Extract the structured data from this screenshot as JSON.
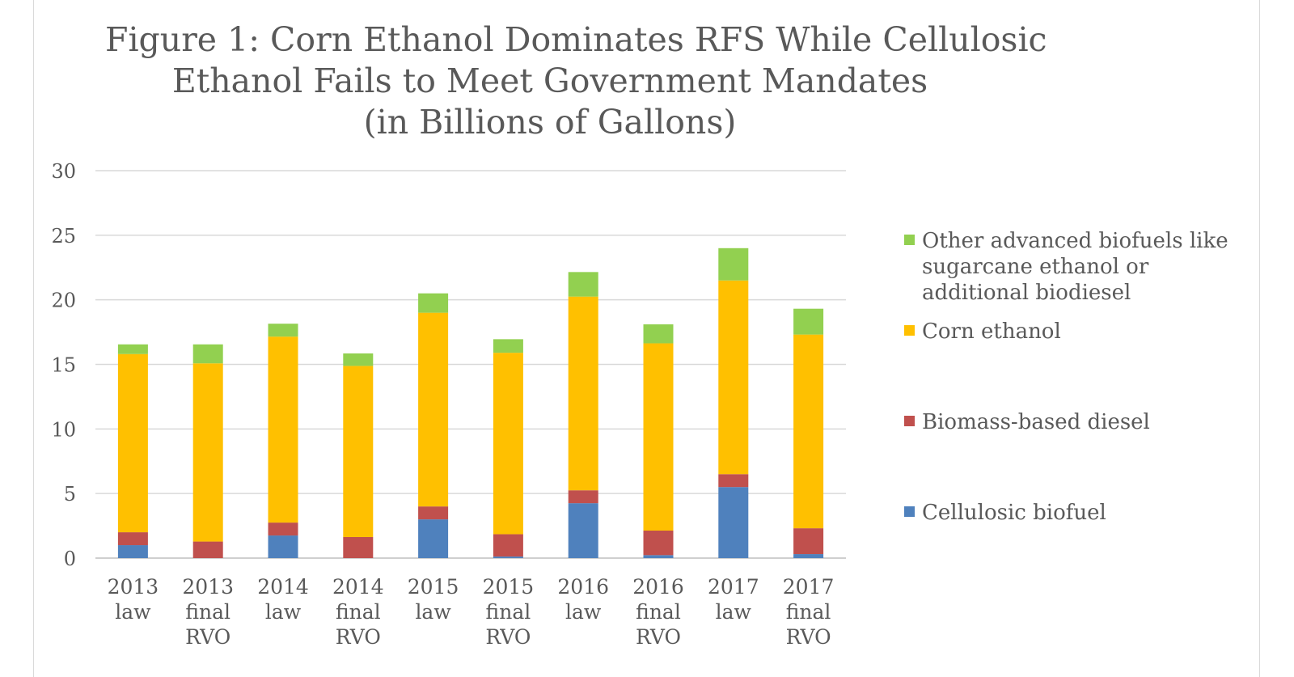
{
  "title_lines": [
    "Figure 1:  Corn Ethanol Dominates RFS While Cellulosic",
    "Ethanol Fails to Meet Government Mandates",
    "(in Billions of Gallons)"
  ],
  "chart_data": {
    "type": "bar",
    "stacked": true,
    "title": "Figure 1:  Corn Ethanol Dominates RFS While Cellulosic Ethanol Fails to Meet Government Mandates (in Billions of Gallons)",
    "xlabel": "",
    "ylabel": "",
    "ylim": [
      0,
      30
    ],
    "yticks": [
      0,
      5,
      10,
      15,
      20,
      25,
      30
    ],
    "grid": true,
    "legend_position": "right",
    "categories": [
      [
        "2013",
        "law"
      ],
      [
        "2013",
        "final",
        "RVO"
      ],
      [
        "2014",
        "law"
      ],
      [
        "2014",
        "final",
        "RVO"
      ],
      [
        "2015",
        "law"
      ],
      [
        "2015",
        "final",
        "RVO"
      ],
      [
        "2016",
        "law"
      ],
      [
        "2016",
        "final",
        "RVO"
      ],
      [
        "2017",
        "law"
      ],
      [
        "2017",
        "final",
        "RVO"
      ]
    ],
    "series": [
      {
        "name": "Cellulosic biofuel",
        "color": "#4f81bd",
        "values": [
          1.0,
          0.0,
          1.75,
          0.0,
          3.0,
          0.12,
          4.25,
          0.23,
          5.5,
          0.31
        ]
      },
      {
        "name": "Biomass-based diesel",
        "color": "#c0504d",
        "values": [
          1.0,
          1.28,
          1.0,
          1.63,
          1.0,
          1.73,
          1.0,
          1.9,
          1.0,
          2.0
        ]
      },
      {
        "name": "Corn ethanol",
        "color": "#ffc000",
        "values": [
          13.8,
          13.8,
          14.4,
          13.25,
          15.0,
          14.05,
          15.0,
          14.5,
          15.0,
          15.0
        ]
      },
      {
        "name": "Other advanced biofuels like sugarcane ethanol or additional biodiesel",
        "color": "#92d050",
        "values": [
          0.75,
          1.47,
          1.0,
          0.97,
          1.5,
          1.05,
          1.9,
          1.47,
          2.5,
          2.0
        ]
      }
    ]
  },
  "legend_items": [
    {
      "label": "Other advanced biofuels like sugarcane ethanol or additional biodiesel",
      "color": "#92d050"
    },
    {
      "label": "Corn ethanol",
      "color": "#ffc000"
    },
    {
      "label": "Biomass-based diesel",
      "color": "#c0504d"
    },
    {
      "label": "Cellulosic biofuel",
      "color": "#4f81bd"
    }
  ],
  "colors": {
    "gridline": "#d9d9d9",
    "axis": "#bfbfbf",
    "text": "#595959"
  }
}
